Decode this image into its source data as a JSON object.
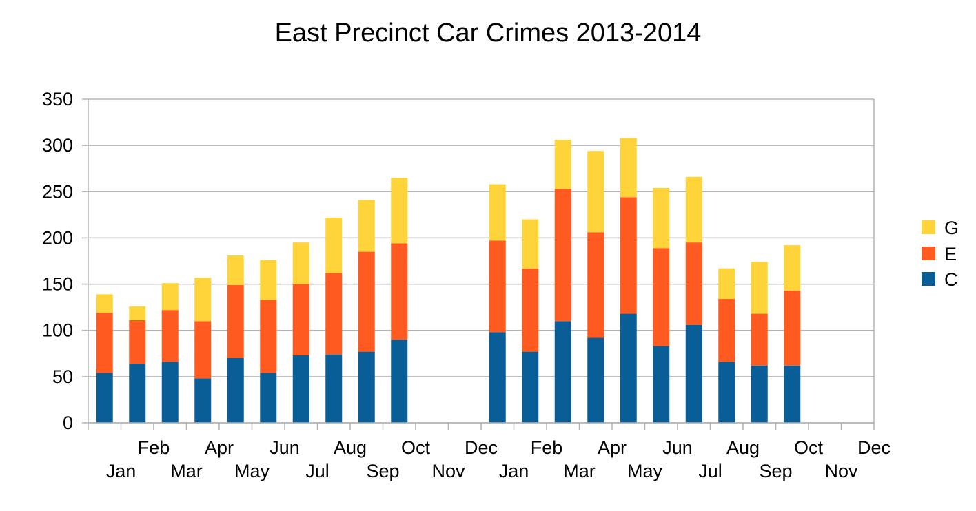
{
  "chart_data": {
    "type": "bar",
    "stacked": true,
    "title": "East Precinct Car Crimes 2013-2014",
    "xlabel": "",
    "ylabel": "",
    "ylim": [
      0,
      350
    ],
    "yticks": [
      0,
      50,
      100,
      150,
      200,
      250,
      300,
      350
    ],
    "grid": true,
    "legend_position": "right",
    "categories": [
      "Jan",
      "Feb",
      "Mar",
      "Apr",
      "May",
      "Jun",
      "Jul",
      "Aug",
      "Sep",
      "Oct",
      "Nov",
      "Dec",
      "Jan",
      "Feb",
      "Mar",
      "Apr",
      "May",
      "Jun",
      "Jul",
      "Aug",
      "Sep",
      "Oct",
      "Nov",
      "Dec"
    ],
    "series": [
      {
        "name": "C",
        "color": "#0a5e97",
        "values": [
          54,
          64,
          66,
          48,
          70,
          54,
          73,
          74,
          77,
          90,
          null,
          null,
          98,
          77,
          110,
          92,
          118,
          83,
          106,
          66,
          62,
          62,
          null,
          null
        ]
      },
      {
        "name": "E",
        "color": "#ff5a1f",
        "values": [
          65,
          47,
          56,
          62,
          79,
          79,
          77,
          88,
          108,
          104,
          null,
          null,
          99,
          90,
          143,
          114,
          126,
          106,
          89,
          68,
          56,
          81,
          null,
          null
        ]
      },
      {
        "name": "G",
        "color": "#ffd43a",
        "values": [
          20,
          15,
          29,
          47,
          32,
          43,
          45,
          60,
          56,
          71,
          null,
          null,
          61,
          53,
          53,
          88,
          64,
          65,
          71,
          33,
          56,
          49,
          null,
          null
        ]
      }
    ],
    "legend_order": [
      "G",
      "E",
      "C"
    ]
  }
}
